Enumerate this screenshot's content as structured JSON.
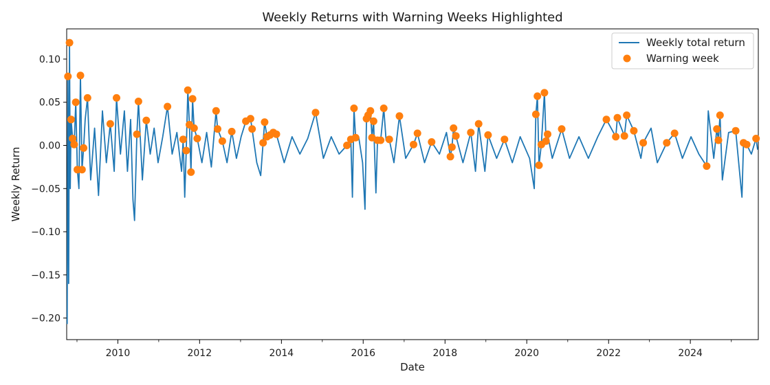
{
  "chart_data": {
    "type": "line",
    "title": "Weekly Returns with Warning Weeks Highlighted",
    "xlabel": "Date",
    "ylabel": "Weekly Return",
    "xlim": [
      "2008-10-01",
      "2025-08-30"
    ],
    "ylim": [
      -0.225,
      0.135
    ],
    "x_ticks": [
      "2010",
      "2012",
      "2014",
      "2016",
      "2018",
      "2020",
      "2022",
      "2024"
    ],
    "y_ticks": [
      0.1,
      0.05,
      0.0,
      -0.05,
      -0.1,
      -0.15,
      -0.2
    ],
    "y_tick_labels": [
      "0.10",
      "0.05",
      "0.00",
      "−0.05",
      "−0.10",
      "−0.15",
      "−0.20"
    ],
    "grid": false,
    "legend_position": "top-right",
    "series": [
      {
        "name": "Weekly total return",
        "kind": "line",
        "color": "#1f77b4",
        "points": [
          [
            "2008-10-05",
            -0.207
          ],
          [
            "2008-10-12",
            0.08
          ],
          [
            "2008-10-19",
            -0.16
          ],
          [
            "2008-10-26",
            0.119
          ],
          [
            "2008-11-02",
            -0.05
          ],
          [
            "2008-11-09",
            0.03
          ],
          [
            "2008-11-23",
            0.008
          ],
          [
            "2008-12-07",
            0.001
          ],
          [
            "2008-12-21",
            0.05
          ],
          [
            "2009-01-04",
            -0.028
          ],
          [
            "2009-01-18",
            -0.05
          ],
          [
            "2009-02-01",
            0.081
          ],
          [
            "2009-02-15",
            -0.028
          ],
          [
            "2009-03-01",
            -0.003
          ],
          [
            "2009-03-15",
            0.03
          ],
          [
            "2009-04-05",
            0.055
          ],
          [
            "2009-05-03",
            -0.04
          ],
          [
            "2009-06-07",
            0.02
          ],
          [
            "2009-07-12",
            -0.058
          ],
          [
            "2009-08-16",
            0.04
          ],
          [
            "2009-09-20",
            -0.02
          ],
          [
            "2009-10-25",
            0.025
          ],
          [
            "2009-11-29",
            -0.03
          ],
          [
            "2009-12-20",
            0.055
          ],
          [
            "2010-01-24",
            -0.01
          ],
          [
            "2010-02-28",
            0.04
          ],
          [
            "2010-03-28",
            -0.03
          ],
          [
            "2010-04-25",
            0.03
          ],
          [
            "2010-05-16",
            -0.063
          ],
          [
            "2010-05-30",
            -0.087
          ],
          [
            "2010-06-20",
            0.013
          ],
          [
            "2010-07-04",
            0.051
          ],
          [
            "2010-08-08",
            -0.04
          ],
          [
            "2010-09-12",
            0.029
          ],
          [
            "2010-10-17",
            -0.01
          ],
          [
            "2010-11-21",
            0.02
          ],
          [
            "2010-12-26",
            -0.02
          ],
          [
            "2011-02-06",
            0.01
          ],
          [
            "2011-03-20",
            0.045
          ],
          [
            "2011-05-01",
            -0.01
          ],
          [
            "2011-06-12",
            0.015
          ],
          [
            "2011-07-24",
            -0.03
          ],
          [
            "2011-08-07",
            0.007
          ],
          [
            "2011-08-21",
            -0.06
          ],
          [
            "2011-09-04",
            -0.006
          ],
          [
            "2011-09-18",
            0.064
          ],
          [
            "2011-10-02",
            0.024
          ],
          [
            "2011-10-16",
            -0.031
          ],
          [
            "2011-10-30",
            0.054
          ],
          [
            "2011-11-13",
            0.02
          ],
          [
            "2011-12-11",
            0.008
          ],
          [
            "2012-01-22",
            -0.02
          ],
          [
            "2012-03-04",
            0.015
          ],
          [
            "2012-04-15",
            -0.025
          ],
          [
            "2012-05-27",
            0.04
          ],
          [
            "2012-06-10",
            0.019
          ],
          [
            "2012-07-22",
            0.005
          ],
          [
            "2012-09-02",
            -0.02
          ],
          [
            "2012-10-14",
            0.016
          ],
          [
            "2012-11-25",
            -0.015
          ],
          [
            "2013-01-06",
            0.01
          ],
          [
            "2013-02-17",
            0.028
          ],
          [
            "2013-03-31",
            0.031
          ],
          [
            "2013-04-14",
            0.019
          ],
          [
            "2013-05-26",
            -0.02
          ],
          [
            "2013-06-30",
            -0.035
          ],
          [
            "2013-07-21",
            0.003
          ],
          [
            "2013-08-04",
            0.027
          ],
          [
            "2013-08-25",
            0.01
          ],
          [
            "2013-09-22",
            0.012
          ],
          [
            "2013-10-20",
            0.015
          ],
          [
            "2013-11-17",
            0.013
          ],
          [
            "2014-01-26",
            -0.02
          ],
          [
            "2014-04-06",
            0.01
          ],
          [
            "2014-06-15",
            -0.01
          ],
          [
            "2014-08-24",
            0.008
          ],
          [
            "2014-11-02",
            0.038
          ],
          [
            "2015-01-11",
            -0.015
          ],
          [
            "2015-03-22",
            0.01
          ],
          [
            "2015-05-31",
            -0.01
          ],
          [
            "2015-08-09",
            0.0
          ],
          [
            "2015-09-13",
            0.007
          ],
          [
            "2015-09-27",
            -0.06
          ],
          [
            "2015-10-11",
            0.043
          ],
          [
            "2015-10-25",
            0.009
          ],
          [
            "2015-11-22",
            0.01
          ],
          [
            "2015-12-27",
            -0.02
          ],
          [
            "2016-01-17",
            -0.074
          ],
          [
            "2016-01-31",
            0.031
          ],
          [
            "2016-02-14",
            0.035
          ],
          [
            "2016-03-06",
            0.04
          ],
          [
            "2016-03-20",
            0.009
          ],
          [
            "2016-04-03",
            0.028
          ],
          [
            "2016-04-24",
            -0.055
          ],
          [
            "2016-05-08",
            0.006
          ],
          [
            "2016-06-05",
            0.006
          ],
          [
            "2016-07-03",
            0.043
          ],
          [
            "2016-07-24",
            0.006
          ],
          [
            "2016-08-21",
            0.007
          ],
          [
            "2016-10-02",
            -0.02
          ],
          [
            "2016-11-20",
            0.034
          ],
          [
            "2017-01-15",
            -0.015
          ],
          [
            "2017-03-26",
            0.001
          ],
          [
            "2017-04-30",
            0.014
          ],
          [
            "2017-07-02",
            -0.02
          ],
          [
            "2017-09-03",
            0.004
          ],
          [
            "2017-11-12",
            -0.01
          ],
          [
            "2018-01-14",
            0.015
          ],
          [
            "2018-02-18",
            -0.013
          ],
          [
            "2018-03-04",
            -0.002
          ],
          [
            "2018-03-18",
            0.02
          ],
          [
            "2018-04-08",
            0.011
          ],
          [
            "2018-06-10",
            -0.02
          ],
          [
            "2018-08-19",
            0.015
          ],
          [
            "2018-09-30",
            -0.03
          ],
          [
            "2018-10-28",
            0.025
          ],
          [
            "2018-12-23",
            -0.03
          ],
          [
            "2019-01-20",
            0.012
          ],
          [
            "2019-04-07",
            -0.015
          ],
          [
            "2019-06-16",
            0.007
          ],
          [
            "2019-08-25",
            -0.02
          ],
          [
            "2019-11-03",
            0.01
          ],
          [
            "2020-01-26",
            -0.015
          ],
          [
            "2020-03-08",
            -0.05
          ],
          [
            "2020-03-22",
            0.036
          ],
          [
            "2020-04-05",
            0.057
          ],
          [
            "2020-04-19",
            -0.023
          ],
          [
            "2020-05-10",
            0.001
          ],
          [
            "2020-06-07",
            0.061
          ],
          [
            "2020-06-21",
            0.005
          ],
          [
            "2020-07-05",
            0.013
          ],
          [
            "2020-08-16",
            -0.015
          ],
          [
            "2020-11-08",
            0.019
          ],
          [
            "2021-01-17",
            -0.015
          ],
          [
            "2021-04-11",
            0.01
          ],
          [
            "2021-07-04",
            -0.015
          ],
          [
            "2021-09-26",
            0.01
          ],
          [
            "2021-12-12",
            0.03
          ],
          [
            "2022-03-06",
            0.01
          ],
          [
            "2022-03-20",
            0.032
          ],
          [
            "2022-05-22",
            0.011
          ],
          [
            "2022-06-12",
            0.035
          ],
          [
            "2022-08-14",
            0.017
          ],
          [
            "2022-10-16",
            -0.015
          ],
          [
            "2022-11-06",
            0.003
          ],
          [
            "2023-01-15",
            0.02
          ],
          [
            "2023-03-12",
            -0.02
          ],
          [
            "2023-06-04",
            0.003
          ],
          [
            "2023-08-13",
            0.014
          ],
          [
            "2023-10-22",
            -0.015
          ],
          [
            "2024-01-07",
            0.01
          ],
          [
            "2024-03-17",
            -0.01
          ],
          [
            "2024-05-26",
            -0.024
          ],
          [
            "2024-06-09",
            0.04
          ],
          [
            "2024-07-28",
            -0.015
          ],
          [
            "2024-08-25",
            0.019
          ],
          [
            "2024-09-08",
            0.006
          ],
          [
            "2024-09-22",
            0.035
          ],
          [
            "2024-10-13",
            -0.04
          ],
          [
            "2024-12-08",
            0.015
          ],
          [
            "2025-02-09",
            0.017
          ],
          [
            "2025-04-06",
            -0.06
          ],
          [
            "2025-04-20",
            0.003
          ],
          [
            "2025-05-18",
            0.001
          ],
          [
            "2025-06-29",
            -0.01
          ],
          [
            "2025-08-10",
            0.008
          ],
          [
            "2025-08-24",
            -0.005
          ]
        ]
      },
      {
        "name": "Warning week",
        "kind": "scatter",
        "color": "#ff7f0e",
        "points": [
          [
            "2008-10-12",
            0.08
          ],
          [
            "2008-10-26",
            0.119
          ],
          [
            "2008-11-09",
            0.03
          ],
          [
            "2008-11-23",
            0.008
          ],
          [
            "2008-12-07",
            0.001
          ],
          [
            "2008-12-21",
            0.05
          ],
          [
            "2009-01-04",
            -0.028
          ],
          [
            "2009-02-01",
            0.081
          ],
          [
            "2009-02-15",
            -0.028
          ],
          [
            "2009-03-01",
            -0.003
          ],
          [
            "2009-04-05",
            0.055
          ],
          [
            "2009-10-25",
            0.025
          ],
          [
            "2009-12-20",
            0.055
          ],
          [
            "2010-06-20",
            0.013
          ],
          [
            "2010-07-04",
            0.051
          ],
          [
            "2010-09-12",
            0.029
          ],
          [
            "2011-03-20",
            0.045
          ],
          [
            "2011-08-07",
            0.007
          ],
          [
            "2011-09-04",
            -0.006
          ],
          [
            "2011-09-18",
            0.064
          ],
          [
            "2011-10-02",
            0.024
          ],
          [
            "2011-10-16",
            -0.031
          ],
          [
            "2011-10-30",
            0.054
          ],
          [
            "2011-11-13",
            0.02
          ],
          [
            "2011-12-11",
            0.008
          ],
          [
            "2012-05-27",
            0.04
          ],
          [
            "2012-06-10",
            0.019
          ],
          [
            "2012-07-22",
            0.005
          ],
          [
            "2012-10-14",
            0.016
          ],
          [
            "2013-02-17",
            0.028
          ],
          [
            "2013-03-31",
            0.031
          ],
          [
            "2013-04-14",
            0.019
          ],
          [
            "2013-07-21",
            0.003
          ],
          [
            "2013-08-04",
            0.027
          ],
          [
            "2013-08-25",
            0.01
          ],
          [
            "2013-09-22",
            0.012
          ],
          [
            "2013-10-20",
            0.015
          ],
          [
            "2013-11-17",
            0.013
          ],
          [
            "2014-11-02",
            0.038
          ],
          [
            "2015-08-09",
            0.0
          ],
          [
            "2015-09-13",
            0.007
          ],
          [
            "2015-10-11",
            0.043
          ],
          [
            "2015-10-25",
            0.009
          ],
          [
            "2016-01-31",
            0.031
          ],
          [
            "2016-02-14",
            0.035
          ],
          [
            "2016-03-06",
            0.04
          ],
          [
            "2016-03-20",
            0.009
          ],
          [
            "2016-04-03",
            0.028
          ],
          [
            "2016-05-08",
            0.006
          ],
          [
            "2016-06-05",
            0.006
          ],
          [
            "2016-07-03",
            0.043
          ],
          [
            "2016-08-21",
            0.007
          ],
          [
            "2016-11-20",
            0.034
          ],
          [
            "2017-03-26",
            0.001
          ],
          [
            "2017-04-30",
            0.014
          ],
          [
            "2017-09-03",
            0.004
          ],
          [
            "2018-02-18",
            -0.013
          ],
          [
            "2018-03-04",
            -0.002
          ],
          [
            "2018-03-18",
            0.02
          ],
          [
            "2018-04-08",
            0.011
          ],
          [
            "2018-08-19",
            0.015
          ],
          [
            "2018-10-28",
            0.025
          ],
          [
            "2019-01-20",
            0.012
          ],
          [
            "2019-06-16",
            0.007
          ],
          [
            "2020-03-22",
            0.036
          ],
          [
            "2020-04-05",
            0.057
          ],
          [
            "2020-04-19",
            -0.023
          ],
          [
            "2020-05-10",
            0.001
          ],
          [
            "2020-06-07",
            0.061
          ],
          [
            "2020-06-21",
            0.005
          ],
          [
            "2020-07-05",
            0.013
          ],
          [
            "2020-11-08",
            0.019
          ],
          [
            "2021-12-12",
            0.03
          ],
          [
            "2022-03-06",
            0.01
          ],
          [
            "2022-03-20",
            0.032
          ],
          [
            "2022-05-22",
            0.011
          ],
          [
            "2022-06-12",
            0.035
          ],
          [
            "2022-08-14",
            0.017
          ],
          [
            "2022-11-06",
            0.003
          ],
          [
            "2023-06-04",
            0.003
          ],
          [
            "2023-08-13",
            0.014
          ],
          [
            "2024-05-26",
            -0.024
          ],
          [
            "2024-08-25",
            0.019
          ],
          [
            "2024-09-08",
            0.006
          ],
          [
            "2024-09-22",
            0.035
          ],
          [
            "2025-02-09",
            0.017
          ],
          [
            "2025-04-20",
            0.003
          ],
          [
            "2025-05-18",
            0.001
          ],
          [
            "2025-08-10",
            0.008
          ]
        ]
      }
    ]
  }
}
